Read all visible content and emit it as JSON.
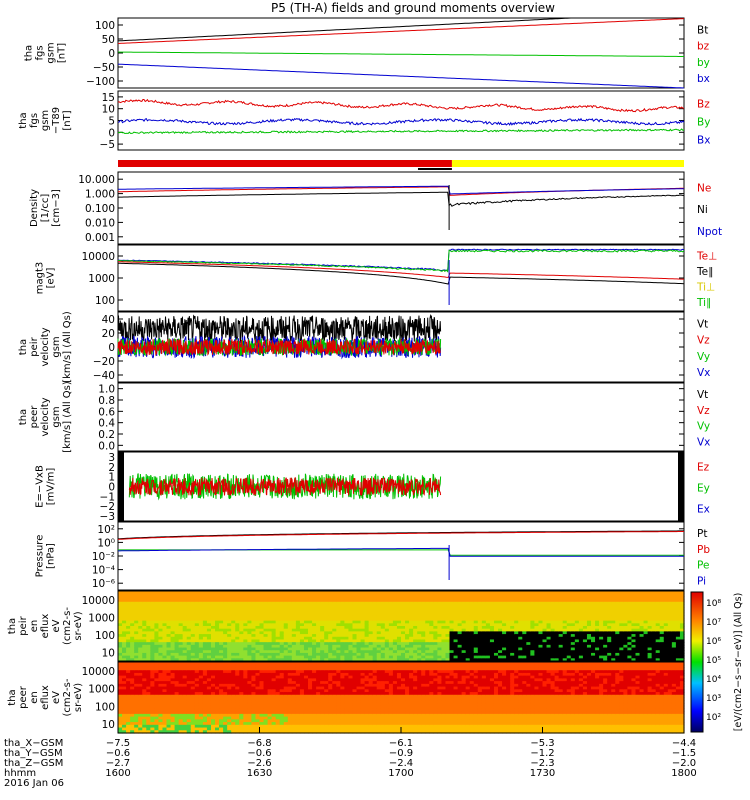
{
  "title": "P5 (TH-A) fields and ground moments overview",
  "colors": {
    "black": "#000000",
    "red": "#e00000",
    "green": "#00c000",
    "blue": "#0000d0",
    "yellow": "#ffff00"
  },
  "chart_data": [
    {
      "type": "line",
      "ylabel": [
        "tha",
        "fgs",
        "gsm",
        "[nT]"
      ],
      "yticks": [
        "100",
        "50",
        "0",
        "−50",
        "−100"
      ],
      "ylim": [
        -110,
        110
      ],
      "series": [
        {
          "name": "Bt",
          "color": "black"
        },
        {
          "name": "bz",
          "color": "red"
        },
        {
          "name": "by",
          "color": "green"
        },
        {
          "name": "bx",
          "color": "blue"
        }
      ]
    },
    {
      "type": "line",
      "ylabel": [
        "tha",
        "fgs",
        "gsm",
        "−T89",
        "[nT]"
      ],
      "yticks": [
        "15",
        "10",
        "5",
        "0",
        "−5"
      ],
      "ylim": [
        -8,
        16
      ],
      "series": [
        {
          "name": "Bz",
          "color": "red"
        },
        {
          "name": "By",
          "color": "green"
        },
        {
          "name": "Bx",
          "color": "blue"
        }
      ]
    },
    {
      "type": "line",
      "ylabel": [
        "Density",
        "[1/cc]",
        "[cm−3]"
      ],
      "yticks": [
        "10.000",
        "1.000",
        "0.100",
        "0.010",
        "0.001"
      ],
      "log": true,
      "ylim": [
        0.001,
        10
      ],
      "series": [
        {
          "name": "Ne",
          "color": "red"
        },
        {
          "name": "Ni",
          "color": "black"
        },
        {
          "name": "Npot",
          "color": "blue"
        }
      ]
    },
    {
      "type": "line",
      "ylabel": [
        "magt3",
        "[eV]"
      ],
      "yticks": [
        "10000",
        "1000",
        "100"
      ],
      "log": true,
      "ylim": [
        20,
        15000
      ],
      "series": [
        {
          "name": "Te⊥",
          "color": "red"
        },
        {
          "name": "Te∥",
          "color": "black"
        },
        {
          "name": "Ti⊥",
          "color": "yellow"
        },
        {
          "name": "Ti∥",
          "color": "green"
        }
      ]
    },
    {
      "type": "line",
      "ylabel": [
        "tha",
        "peir",
        "velocity",
        "gsm",
        "[km/s] (All Qs)"
      ],
      "yticks": [
        "40",
        "20",
        "0",
        "−20",
        "−40"
      ],
      "ylim": [
        -40,
        40
      ],
      "series": [
        {
          "name": "Vt",
          "color": "black"
        },
        {
          "name": "Vz",
          "color": "red"
        },
        {
          "name": "Vy",
          "color": "green"
        },
        {
          "name": "Vx",
          "color": "blue"
        }
      ]
    },
    {
      "type": "line",
      "ylabel": [
        "tha",
        "peer",
        "velocity",
        "gsm",
        "[km/s] (All Qs)"
      ],
      "yticks": [
        "1.0",
        "0.8",
        "0.6",
        "0.4",
        "0.2",
        "0.0"
      ],
      "ylim": [
        0,
        1
      ],
      "series": [
        {
          "name": "Vt",
          "color": "black"
        },
        {
          "name": "Vz",
          "color": "red"
        },
        {
          "name": "Vy",
          "color": "green"
        },
        {
          "name": "Vx",
          "color": "blue"
        }
      ]
    },
    {
      "type": "line",
      "ylabel": [
        "E=−VxB",
        "[mV/m]"
      ],
      "yticks": [
        "3",
        "2",
        "1",
        "0",
        "−1",
        "−2",
        "−3"
      ],
      "ylim": [
        -3.5,
        3.5
      ],
      "series": [
        {
          "name": "Ez",
          "color": "red"
        },
        {
          "name": "Ey",
          "color": "green"
        },
        {
          "name": "Ex",
          "color": "blue"
        }
      ]
    },
    {
      "type": "line",
      "ylabel": [
        "Pressure",
        "[nPa]"
      ],
      "yticks": [
        "10²",
        "10⁰",
        "10⁻²",
        "10⁻⁴",
        "10⁻⁶"
      ],
      "log": true,
      "ylim": [
        1e-07,
        100
      ],
      "series": [
        {
          "name": "Pt",
          "color": "black"
        },
        {
          "name": "Pb",
          "color": "red"
        },
        {
          "name": "Pe",
          "color": "green"
        },
        {
          "name": "Pi",
          "color": "blue"
        }
      ]
    },
    {
      "type": "heatmap",
      "ylabel": [
        "tha",
        "peir",
        "en",
        "eflux",
        "eV",
        "(cm2-s-",
        "sr-eV)"
      ],
      "yticks": [
        "10000",
        "1000",
        "100",
        "10"
      ],
      "log": true
    },
    {
      "type": "heatmap",
      "ylabel": [
        "tha",
        "peer",
        "en",
        "eflux",
        "eV",
        "(cm2-s-",
        "sr-eV)"
      ],
      "yticks": [
        "10000",
        "1000",
        "100",
        "10"
      ],
      "log": true
    }
  ],
  "colorbar": {
    "ticks": [
      "10⁸",
      "10⁷",
      "10⁶",
      "10⁵",
      "10⁴",
      "10³",
      "10²"
    ],
    "label": "[eV/(cm2−s−sr−eV)] (All Qs)"
  },
  "xaxis": {
    "row_labels": [
      "tha_X−GSM",
      "tha_Y−GSM",
      "tha_Z−GSM",
      "hhmm",
      "2016 Jan 06"
    ],
    "columns": [
      [
        "−7.5",
        "−0.6",
        "−2.7",
        "1600"
      ],
      [
        "−6.8",
        "−0.6",
        "−2.6",
        "1630"
      ],
      [
        "−6.1",
        "−0.9",
        "−2.4",
        "1700"
      ],
      [
        "−5.3",
        "−1.2",
        "−2.3",
        "1730"
      ],
      [
        "−4.4",
        "−1.5",
        "−2.0",
        "1800"
      ]
    ]
  }
}
